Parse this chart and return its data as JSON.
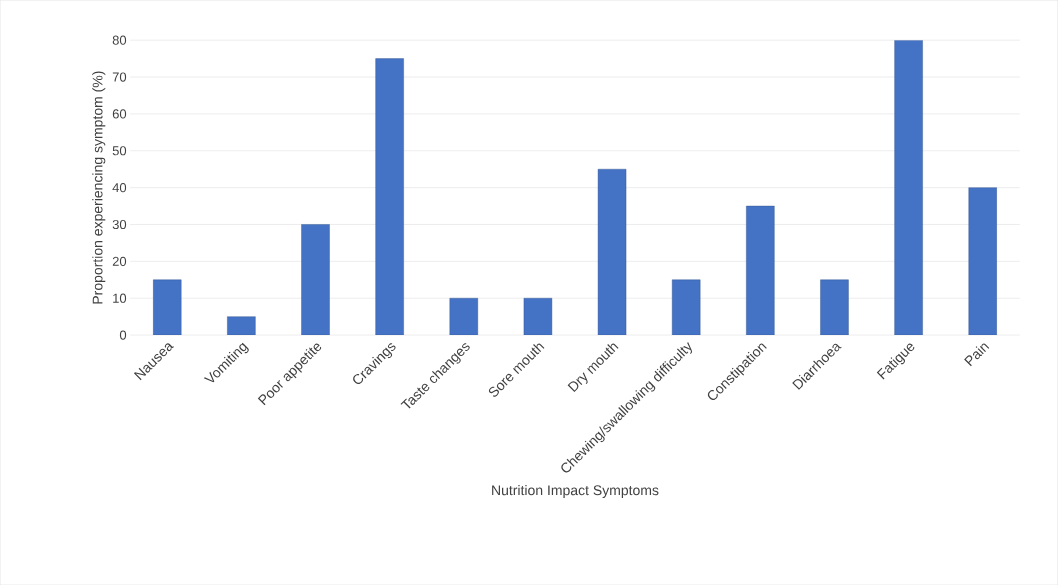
{
  "chart_data": {
    "type": "bar",
    "xlabel": "Nutrition Impact Symptoms",
    "ylabel": "Proportion experiencing symptom (%)",
    "categories": [
      "Nausea",
      "Vomiting",
      "Poor appetite",
      "Cravings",
      "Taste changes",
      "Sore mouth",
      "Dry mouth",
      "Chewing/swallowing difficulty",
      "Constipation",
      "Diarrhoea",
      "Fatigue",
      "Pain"
    ],
    "values": [
      15,
      5,
      30,
      75,
      10,
      10,
      45,
      15,
      35,
      15,
      80,
      40
    ],
    "color": "#4472c4",
    "ylim": [
      0,
      80
    ],
    "yticks": [
      0,
      10,
      20,
      30,
      40,
      50,
      60,
      70,
      80
    ],
    "grid": "y"
  }
}
